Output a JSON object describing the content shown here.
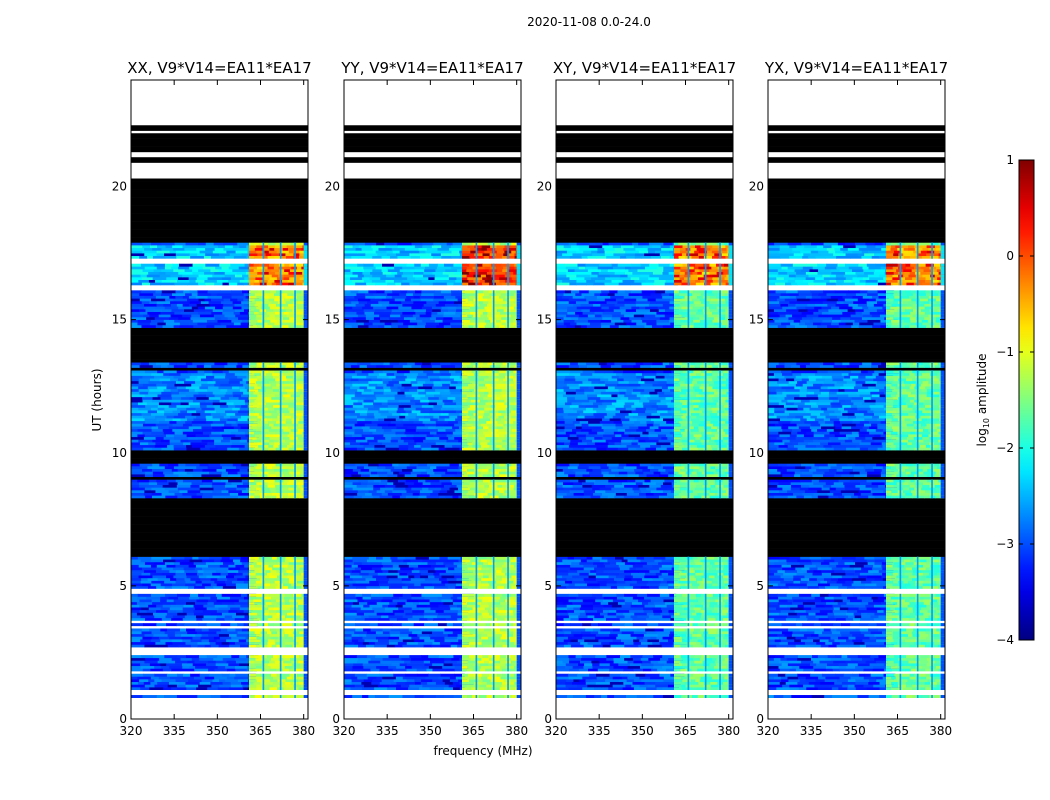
{
  "suptitle": "2020-11-08 0.0-24.0",
  "chart_data": {
    "type": "heatmap",
    "panels": [
      {
        "title": "XX, V9*V14=EA11*EA17",
        "corr": "XX"
      },
      {
        "title": "YY, V9*V14=EA11*EA17",
        "corr": "YY"
      },
      {
        "title": "XY, V9*V14=EA11*EA17",
        "corr": "XY"
      },
      {
        "title": "YX, V9*V14=EA11*EA17",
        "corr": "YX"
      }
    ],
    "xlabel": "frequency (MHz)",
    "ylabel": "UT (hours)",
    "xlim": [
      320,
      381.5
    ],
    "ylim": [
      0,
      24
    ],
    "xticks": [
      "320",
      "335",
      "350",
      "365",
      "380"
    ],
    "xtick_values": [
      320,
      335,
      350,
      365,
      380
    ],
    "yticks": [
      "0",
      "5",
      "10",
      "15",
      "20"
    ],
    "ytick_values": [
      0,
      5,
      10,
      15,
      20
    ],
    "bright_band_mhz": [
      361,
      380
    ],
    "bright_columns_mhz": [
      366,
      372,
      377
    ],
    "colorbar": {
      "label": "log10 amplitude",
      "label_main": "log",
      "label_sub": "10",
      "label_rest": " amplitude",
      "range": [
        -4,
        1
      ],
      "ticks": [
        "1",
        "0",
        "−1",
        "−2",
        "−3",
        "−4"
      ],
      "tick_values": [
        1,
        0,
        -1,
        -2,
        -3,
        -4
      ]
    },
    "blank_intervals_hours": [
      [
        0,
        0.8
      ],
      [
        0.95,
        1.05
      ],
      [
        1.75,
        1.85
      ],
      [
        2.45,
        2.75
      ],
      [
        3.45,
        3.55
      ],
      [
        3.62,
        3.7
      ],
      [
        4.65,
        4.9
      ],
      [
        6.05,
        6.1
      ],
      [
        16.05,
        16.25
      ],
      [
        17.1,
        17.25
      ],
      [
        20.3,
        20.95
      ],
      [
        21.15,
        21.3
      ],
      [
        22.05,
        22.15
      ],
      [
        22.3,
        24
      ]
    ],
    "no_data_intervals_hours": [
      [
        6.1,
        8.3
      ],
      [
        8.95,
        9.05
      ],
      [
        9.6,
        10.1
      ],
      [
        13.05,
        13.15
      ],
      [
        13.4,
        14.7
      ],
      [
        17.85,
        20.3
      ],
      [
        20.95,
        21.15
      ],
      [
        21.3,
        22.05
      ],
      [
        22.15,
        22.3
      ]
    ],
    "high_signal_intervals_hours": [
      [
        16.3,
        17.1
      ],
      [
        17.25,
        17.8
      ]
    ]
  }
}
